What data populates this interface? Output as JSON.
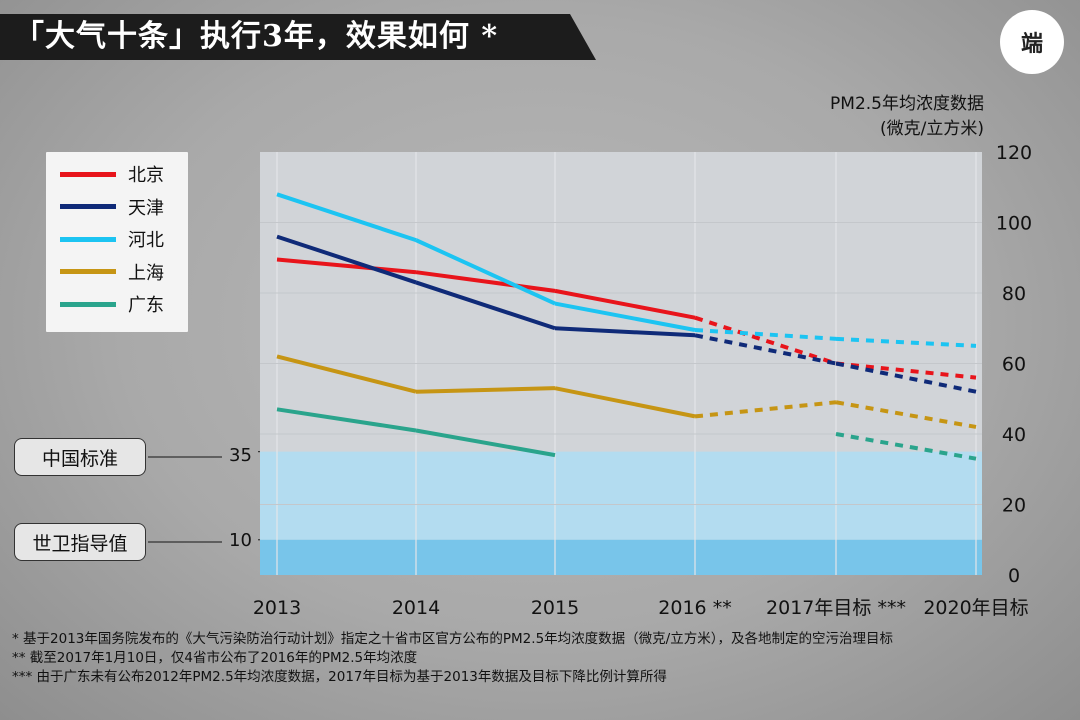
{
  "title": "「大气十条」执行3年，效果如何 *",
  "logo_text": "端",
  "unit_label_line1": "PM2.5年均浓度数据",
  "unit_label_line2": "(微克/立方米)",
  "references": [
    {
      "label": "中国标准",
      "value": "35",
      "y": 35
    },
    {
      "label": "世卫指导值",
      "value": "10",
      "y": 10
    }
  ],
  "footnotes": {
    "note1": "* 基于2013年国务院发布的《大气污染防治行动计划》指定之十省市区官方公布的PM2.5年均浓度数据（微克/立方米），及各地制定的空污治理目标",
    "note2": "** 截至2017年1月10日，仅4省市公布了2016年的PM2.5年均浓度",
    "note3": "*** 由于广东未有公布2012年PM2.5年均浓度数据，2017年目标为基于2013年数据及目标下降比例计算所得"
  },
  "colors": {
    "beijing": "#e8141b",
    "tianjin": "#0f2a78",
    "hebei": "#1cc4f2",
    "shanghai": "#c69514",
    "guangdong": "#2aa48c",
    "plot_bg": "#d1d4d8",
    "band_35": "#b3dcf0",
    "band_10": "#78c5ea"
  },
  "chart_data": {
    "type": "line",
    "title": "「大气十条」执行3年，效果如何 *",
    "xlabel": "",
    "ylabel": "PM2.5年均浓度数据 (微克/立方米)",
    "categories": [
      "2013",
      "2014",
      "2015",
      "2016 **",
      "2017年目标 ***",
      "2020年目标"
    ],
    "ylim": [
      0,
      120
    ],
    "yticks": [
      0,
      20,
      40,
      60,
      80,
      100,
      120
    ],
    "legend_position": "top-left",
    "reference_bands": [
      {
        "label": "中国标准",
        "value": 35
      },
      {
        "label": "世卫指导值",
        "value": 10
      }
    ],
    "series": [
      {
        "name": "北京",
        "color_key": "beijing",
        "values": [
          89.5,
          85.9,
          80.6,
          73,
          60,
          56
        ],
        "dashed_from_index": 3
      },
      {
        "name": "天津",
        "color_key": "tianjin",
        "values": [
          96,
          83,
          70,
          68,
          60,
          52
        ],
        "dashed_from_index": 3
      },
      {
        "name": "河北",
        "color_key": "hebei",
        "values": [
          108,
          95,
          77,
          69.5,
          67,
          65
        ],
        "dashed_from_index": 3
      },
      {
        "name": "上海",
        "color_key": "shanghai",
        "values": [
          62,
          52,
          53,
          45,
          49,
          42
        ],
        "dashed_from_index": 3
      },
      {
        "name": "广东",
        "color_key": "guangdong",
        "values": [
          47,
          41,
          34,
          null,
          40,
          33
        ],
        "dashed_from_index": 4
      }
    ]
  }
}
